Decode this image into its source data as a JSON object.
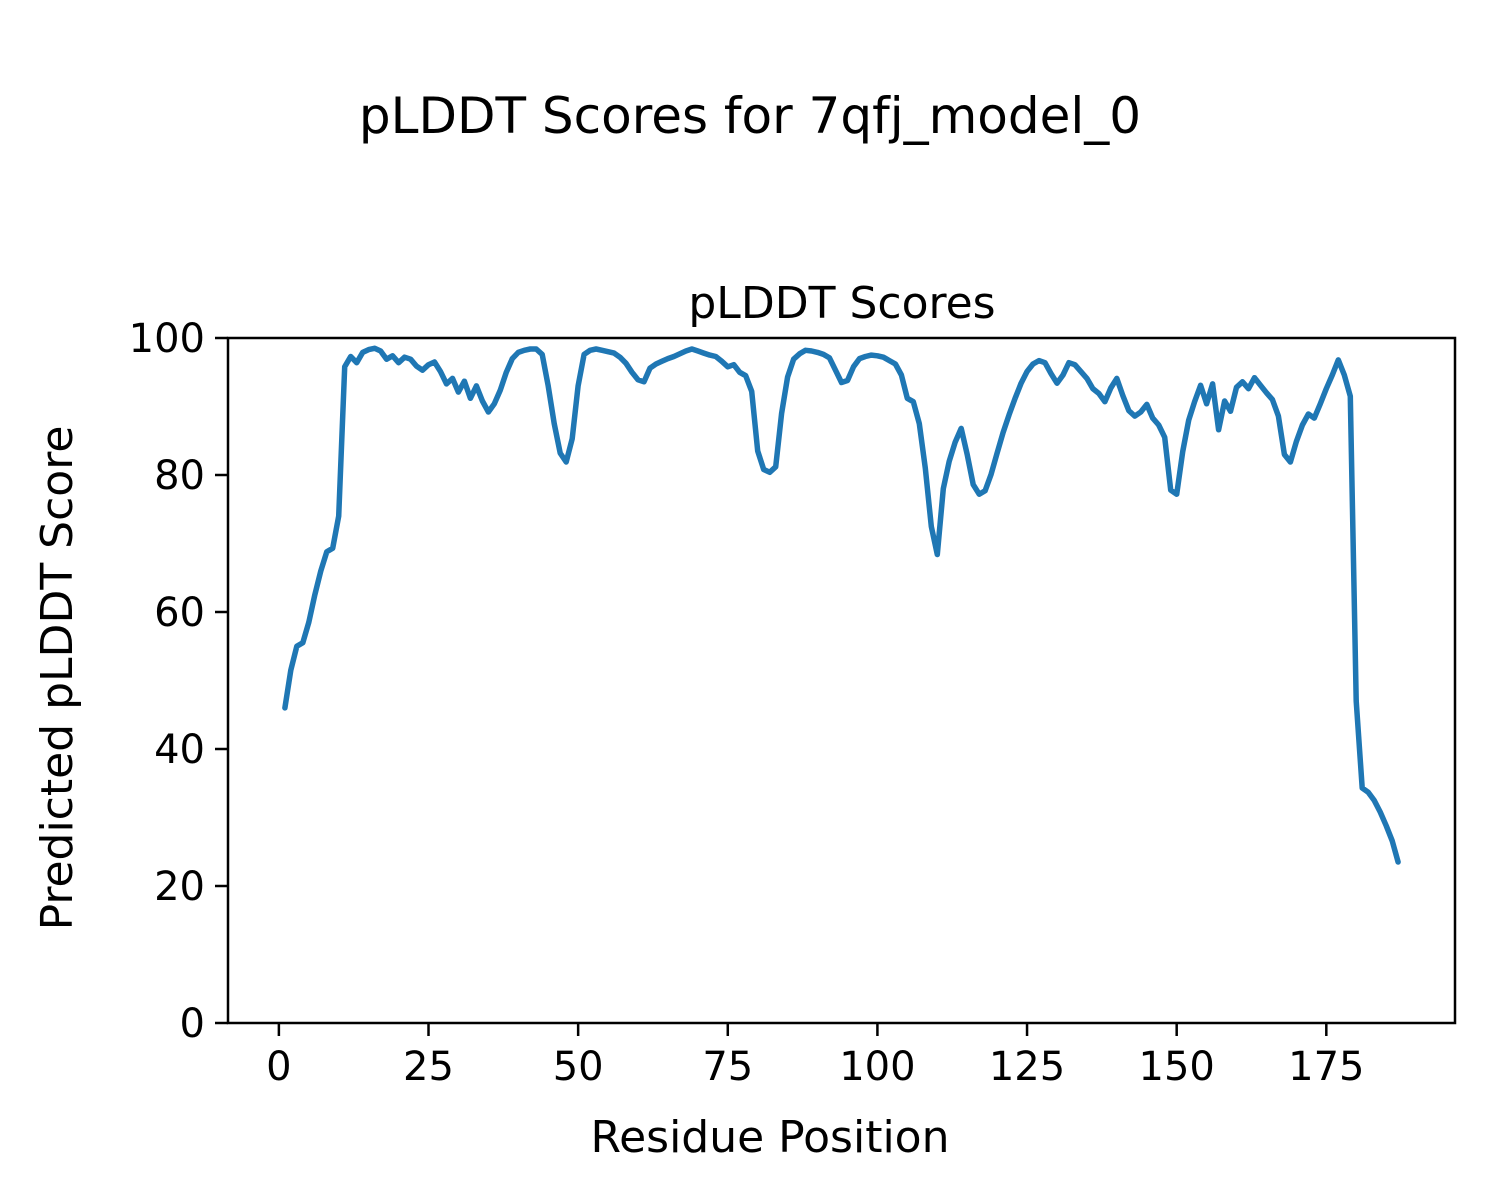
{
  "figure": {
    "suptitle": "pLDDT Scores for 7qfj_model_0"
  },
  "colors": {
    "line": "#1f77b4",
    "axes": "#000000",
    "background": "#ffffff"
  },
  "chart_data": {
    "type": "line",
    "title": "pLDDT Scores",
    "xlabel": "Residue Position",
    "ylabel": "Predicted pLDDT Score",
    "xlim": [
      -8.5,
      196.5
    ],
    "ylim": [
      0,
      100
    ],
    "xticks": [
      0,
      25,
      50,
      75,
      100,
      125,
      150,
      175
    ],
    "yticks": [
      0,
      20,
      40,
      60,
      80,
      100
    ],
    "grid": false,
    "legend": "none",
    "series_name": "pLDDT",
    "x": [
      1,
      2,
      3,
      4,
      5,
      6,
      7,
      8,
      9,
      10,
      11,
      12,
      13,
      14,
      15,
      16,
      17,
      18,
      19,
      20,
      21,
      22,
      23,
      24,
      25,
      26,
      27,
      28,
      29,
      30,
      31,
      32,
      33,
      34,
      35,
      36,
      37,
      38,
      39,
      40,
      41,
      42,
      43,
      44,
      45,
      46,
      47,
      48,
      49,
      50,
      51,
      52,
      53,
      54,
      55,
      56,
      57,
      58,
      59,
      60,
      61,
      62,
      63,
      64,
      65,
      66,
      67,
      68,
      69,
      70,
      71,
      72,
      73,
      74,
      75,
      76,
      77,
      78,
      79,
      80,
      81,
      82,
      83,
      84,
      85,
      86,
      87,
      88,
      89,
      90,
      91,
      92,
      93,
      94,
      95,
      96,
      97,
      98,
      99,
      100,
      101,
      102,
      103,
      104,
      105,
      106,
      107,
      108,
      109,
      110,
      111,
      112,
      113,
      114,
      115,
      116,
      117,
      118,
      119,
      120,
      121,
      122,
      123,
      124,
      125,
      126,
      127,
      128,
      129,
      130,
      131,
      132,
      133,
      134,
      135,
      136,
      137,
      138,
      139,
      140,
      141,
      142,
      143,
      144,
      145,
      146,
      147,
      148,
      149,
      150,
      151,
      152,
      153,
      154,
      155,
      156,
      157,
      158,
      159,
      160,
      161,
      162,
      163,
      164,
      165,
      166,
      167,
      168,
      169,
      170,
      171,
      172,
      173,
      174,
      175,
      176,
      177,
      178,
      179,
      180,
      181,
      182,
      183,
      184,
      185,
      186,
      187
    ],
    "y": [
      46.0,
      51.5,
      55.0,
      55.5,
      58.5,
      62.5,
      66.0,
      68.8,
      69.3,
      74.0,
      95.8,
      97.3,
      96.4,
      97.9,
      98.3,
      98.5,
      98.1,
      96.9,
      97.4,
      96.4,
      97.2,
      96.9,
      95.9,
      95.3,
      96.1,
      96.5,
      95.1,
      93.3,
      94.1,
      92.1,
      93.7,
      91.2,
      93.0,
      90.8,
      89.2,
      90.4,
      92.4,
      95.0,
      97.0,
      97.9,
      98.2,
      98.4,
      98.4,
      97.6,
      93.0,
      87.5,
      83.2,
      81.9,
      85.3,
      93.0,
      97.6,
      98.2,
      98.4,
      98.2,
      98.0,
      97.8,
      97.2,
      96.3,
      95.0,
      93.9,
      93.6,
      95.6,
      96.2,
      96.6,
      97.0,
      97.3,
      97.7,
      98.1,
      98.4,
      98.1,
      97.8,
      97.5,
      97.3,
      96.6,
      95.8,
      96.1,
      95.0,
      94.5,
      92.2,
      83.5,
      80.8,
      80.4,
      81.2,
      89.0,
      94.3,
      96.9,
      97.7,
      98.2,
      98.1,
      97.9,
      97.6,
      97.1,
      95.3,
      93.5,
      93.8,
      95.8,
      97.0,
      97.3,
      97.5,
      97.4,
      97.2,
      96.7,
      96.2,
      94.6,
      91.2,
      90.7,
      87.5,
      81.0,
      72.5,
      68.4,
      78.0,
      82.0,
      84.8,
      86.8,
      83.0,
      78.6,
      77.2,
      77.7,
      80.1,
      83.2,
      86.2,
      88.8,
      91.2,
      93.4,
      95.1,
      96.2,
      96.7,
      96.4,
      94.8,
      93.4,
      94.6,
      96.4,
      96.1,
      95.1,
      94.1,
      92.6,
      91.9,
      90.7,
      92.7,
      94.1,
      91.6,
      89.4,
      88.6,
      89.2,
      90.3,
      88.3,
      87.3,
      85.5,
      77.8,
      77.2,
      83.4,
      88.0,
      90.7,
      93.1,
      90.4,
      93.3,
      86.6,
      90.8,
      89.3,
      92.8,
      93.6,
      92.6,
      94.2,
      93.1,
      92.0,
      91.0,
      88.6,
      83.0,
      81.9,
      84.9,
      87.3,
      88.9,
      88.3,
      90.4,
      92.6,
      94.6,
      96.8,
      94.6,
      91.5,
      47.0,
      34.3,
      33.7,
      32.5,
      30.8,
      28.8,
      26.6,
      23.5
    ]
  }
}
